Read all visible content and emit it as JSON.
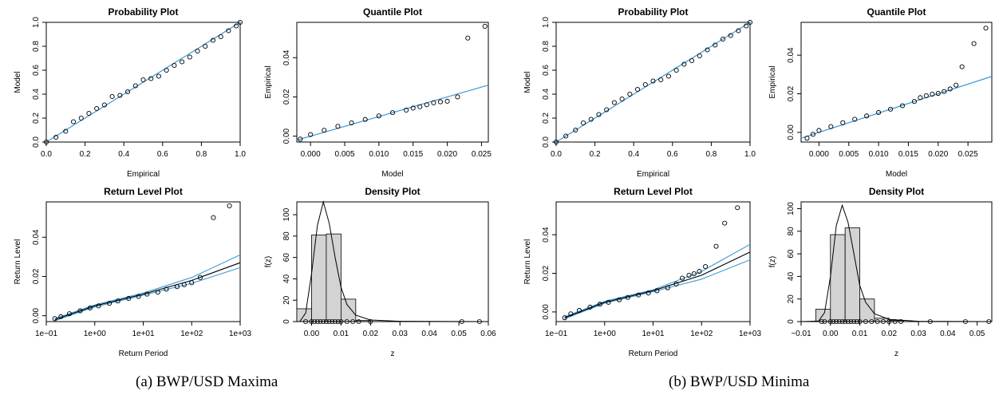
{
  "captions": {
    "a": "(a) BWP/USD Maxima",
    "b": "(b) BWP/USD Minima"
  },
  "colors": {
    "fit_line": "#3a9ad9",
    "points": "#000000",
    "hist_fill": "#d3d3d3"
  },
  "chart_data": [
    {
      "type": "scatter",
      "panel": "a",
      "title": "Probability Plot",
      "xlabel": "Empirical",
      "ylabel": "Model",
      "xlim": [
        0,
        1
      ],
      "ylim": [
        0,
        1
      ],
      "xticks": [
        "0.0",
        "0.2",
        "0.4",
        "0.6",
        "0.8",
        "1.0"
      ],
      "yticks": [
        "0.0",
        "0.2",
        "0.4",
        "0.6",
        "0.8",
        "1.0"
      ],
      "reference_line": {
        "x": [
          0,
          1
        ],
        "y": [
          0,
          1
        ]
      },
      "points": {
        "x": [
          0.0,
          0.05,
          0.1,
          0.14,
          0.18,
          0.22,
          0.26,
          0.3,
          0.34,
          0.38,
          0.42,
          0.46,
          0.5,
          0.54,
          0.58,
          0.62,
          0.66,
          0.7,
          0.74,
          0.78,
          0.82,
          0.86,
          0.9,
          0.94,
          0.98,
          1.0
        ],
        "y": [
          0.0,
          0.04,
          0.09,
          0.17,
          0.2,
          0.24,
          0.28,
          0.31,
          0.38,
          0.39,
          0.42,
          0.47,
          0.52,
          0.53,
          0.55,
          0.6,
          0.64,
          0.67,
          0.71,
          0.76,
          0.8,
          0.85,
          0.88,
          0.93,
          0.97,
          1.0
        ]
      }
    },
    {
      "type": "scatter",
      "panel": "a",
      "title": "Quantile Plot",
      "xlabel": "Model",
      "ylabel": "Empirical",
      "xlim": [
        -0.002,
        0.026
      ],
      "ylim": [
        -0.003,
        0.058
      ],
      "xticks": [
        "0.000",
        "0.005",
        "0.010",
        "0.015",
        "0.020",
        "0.025"
      ],
      "yticks": [
        "0.00",
        "0.02",
        "0.04"
      ],
      "reference_line": {
        "x": [
          -0.002,
          0.026
        ],
        "y": [
          -0.002,
          0.026
        ]
      },
      "points": {
        "x": [
          -0.0015,
          0.0,
          0.002,
          0.004,
          0.006,
          0.008,
          0.01,
          0.012,
          0.014,
          0.015,
          0.016,
          0.017,
          0.018,
          0.019,
          0.02,
          0.0215,
          0.023,
          0.0255
        ],
        "y": [
          -0.0015,
          0.0008,
          0.003,
          0.005,
          0.0068,
          0.0085,
          0.0103,
          0.012,
          0.0133,
          0.0143,
          0.015,
          0.016,
          0.017,
          0.0175,
          0.0178,
          0.02,
          0.05,
          0.056
        ]
      }
    },
    {
      "type": "scatter",
      "panel": "a",
      "title": "Return Level Plot",
      "xlabel": "Return Period",
      "ylabel": "Return Level",
      "xscale": "log",
      "xlim": [
        0.1,
        1000
      ],
      "ylim": [
        -0.003,
        0.058
      ],
      "xticks": [
        "1e−01",
        "1e+00",
        "1e+01",
        "1e+02",
        "1e+03"
      ],
      "yticks": [
        "0.00",
        "0.02",
        "0.04"
      ],
      "fit_line": {
        "x": [
          0.15,
          1,
          10,
          100,
          1000
        ],
        "y": [
          -0.002,
          0.005,
          0.011,
          0.018,
          0.027
        ]
      },
      "ci_upper": {
        "x": [
          0.15,
          1,
          10,
          100,
          1000
        ],
        "y": [
          -0.0015,
          0.0055,
          0.0115,
          0.0195,
          0.031
        ]
      },
      "ci_lower": {
        "x": [
          0.15,
          1,
          10,
          100,
          1000
        ],
        "y": [
          -0.0025,
          0.0045,
          0.0105,
          0.0165,
          0.0245
        ]
      },
      "points": {
        "x": [
          0.15,
          0.2,
          0.3,
          0.5,
          0.8,
          1.2,
          2,
          3,
          5,
          8,
          12,
          20,
          30,
          50,
          70,
          100,
          150,
          280,
          600
        ],
        "y": [
          -0.0015,
          -0.0005,
          0.001,
          0.0025,
          0.004,
          0.005,
          0.0063,
          0.0075,
          0.0088,
          0.0098,
          0.011,
          0.012,
          0.0135,
          0.0148,
          0.0158,
          0.0168,
          0.0195,
          0.05,
          0.056
        ]
      }
    },
    {
      "type": "bar",
      "panel": "a",
      "title": "Density Plot",
      "xlabel": "z",
      "ylabel": "f(z)",
      "xlim": [
        -0.005,
        0.06
      ],
      "ylim": [
        0,
        112
      ],
      "xticks": [
        "0.00",
        "0.01",
        "0.02",
        "0.03",
        "0.04",
        "0.05",
        "0.06"
      ],
      "yticks": [
        "0",
        "20",
        "40",
        "60",
        "80",
        "100"
      ],
      "bins": [
        [
          -0.005,
          0.0
        ],
        [
          0.0,
          0.005
        ],
        [
          0.005,
          0.01
        ],
        [
          0.01,
          0.015
        ],
        [
          0.015,
          0.02
        ]
      ],
      "values": [
        12,
        81,
        82,
        21,
        1
      ],
      "density_curve": {
        "x": [
          -0.004,
          -0.002,
          0.0,
          0.002,
          0.004,
          0.006,
          0.008,
          0.01,
          0.012,
          0.015,
          0.02,
          0.03,
          0.06
        ],
        "y": [
          0,
          8,
          45,
          90,
          112,
          92,
          60,
          32,
          16,
          6,
          1.5,
          0.3,
          0
        ]
      },
      "rug": [
        -0.002,
        0.0,
        0.001,
        0.002,
        0.003,
        0.004,
        0.005,
        0.006,
        0.007,
        0.008,
        0.009,
        0.01,
        0.012,
        0.014,
        0.016,
        0.02,
        0.051,
        0.057
      ]
    },
    {
      "type": "scatter",
      "panel": "b",
      "title": "Probability Plot",
      "xlabel": "Empirical",
      "ylabel": "Model",
      "xlim": [
        0,
        1
      ],
      "ylim": [
        0,
        1
      ],
      "xticks": [
        "0.0",
        "0.2",
        "0.4",
        "0.6",
        "0.8",
        "1.0"
      ],
      "yticks": [
        "0.0",
        "0.2",
        "0.4",
        "0.6",
        "0.8",
        "1.0"
      ],
      "reference_line": {
        "x": [
          0,
          1
        ],
        "y": [
          0,
          1
        ]
      },
      "points": {
        "x": [
          0.0,
          0.05,
          0.1,
          0.14,
          0.18,
          0.22,
          0.26,
          0.3,
          0.34,
          0.38,
          0.42,
          0.46,
          0.5,
          0.54,
          0.58,
          0.62,
          0.66,
          0.7,
          0.74,
          0.78,
          0.82,
          0.86,
          0.9,
          0.94,
          0.98,
          1.0
        ],
        "y": [
          0.0,
          0.05,
          0.1,
          0.16,
          0.19,
          0.23,
          0.27,
          0.33,
          0.36,
          0.4,
          0.44,
          0.48,
          0.51,
          0.52,
          0.55,
          0.6,
          0.65,
          0.68,
          0.72,
          0.77,
          0.81,
          0.86,
          0.89,
          0.93,
          0.97,
          1.0
        ]
      }
    },
    {
      "type": "scatter",
      "panel": "b",
      "title": "Quantile Plot",
      "xlabel": "Model",
      "ylabel": "Empirical",
      "xlim": [
        -0.003,
        0.029
      ],
      "ylim": [
        -0.005,
        0.057
      ],
      "xticks": [
        "0.000",
        "0.005",
        "0.010",
        "0.015",
        "0.020",
        "0.025"
      ],
      "yticks": [
        "0.00",
        "0.02",
        "0.04"
      ],
      "reference_line": {
        "x": [
          -0.003,
          0.029
        ],
        "y": [
          -0.003,
          0.029
        ]
      },
      "points": {
        "x": [
          -0.002,
          -0.001,
          0.0,
          0.002,
          0.004,
          0.006,
          0.008,
          0.01,
          0.012,
          0.014,
          0.016,
          0.017,
          0.018,
          0.019,
          0.02,
          0.021,
          0.022,
          0.023,
          0.024,
          0.026,
          0.028
        ],
        "y": [
          -0.003,
          -0.001,
          0.001,
          0.003,
          0.005,
          0.0068,
          0.0085,
          0.0103,
          0.012,
          0.0138,
          0.016,
          0.018,
          0.019,
          0.0198,
          0.0202,
          0.0212,
          0.0225,
          0.0245,
          0.034,
          0.046,
          0.054
        ]
      }
    },
    {
      "type": "scatter",
      "panel": "b",
      "title": "Return Level Plot",
      "xlabel": "Return Period",
      "ylabel": "Return Level",
      "xscale": "log",
      "xlim": [
        0.1,
        1000
      ],
      "ylim": [
        -0.005,
        0.057
      ],
      "xticks": [
        "1e−01",
        "1e+00",
        "1e+01",
        "1e+02",
        "1e+03"
      ],
      "yticks": [
        "0.00",
        "0.02",
        "0.04"
      ],
      "fit_line": {
        "x": [
          0.15,
          1,
          10,
          100,
          1000
        ],
        "y": [
          -0.003,
          0.005,
          0.011,
          0.019,
          0.031
        ]
      },
      "ci_upper": {
        "x": [
          0.15,
          1,
          10,
          100,
          1000
        ],
        "y": [
          -0.0025,
          0.0055,
          0.0115,
          0.021,
          0.035
        ]
      },
      "ci_lower": {
        "x": [
          0.15,
          1,
          10,
          100,
          1000
        ],
        "y": [
          -0.0035,
          0.0045,
          0.0105,
          0.017,
          0.027
        ]
      },
      "points": {
        "x": [
          0.15,
          0.2,
          0.3,
          0.5,
          0.8,
          1.2,
          2,
          3,
          5,
          8,
          12,
          20,
          30,
          40,
          55,
          70,
          90,
          120,
          200,
          300,
          550
        ],
        "y": [
          -0.003,
          -0.001,
          0.0008,
          0.0025,
          0.004,
          0.005,
          0.0063,
          0.0075,
          0.0088,
          0.0098,
          0.011,
          0.0125,
          0.0145,
          0.0175,
          0.019,
          0.0198,
          0.021,
          0.0235,
          0.034,
          0.046,
          0.054
        ]
      }
    },
    {
      "type": "bar",
      "panel": "b",
      "title": "Density Plot",
      "xlabel": "z",
      "ylabel": "f(z)",
      "xlim": [
        -0.01,
        0.055
      ],
      "ylim": [
        0,
        106
      ],
      "xticks": [
        "−0.01",
        "0.00",
        "0.01",
        "0.02",
        "0.03",
        "0.04",
        "0.05"
      ],
      "yticks": [
        "0",
        "20",
        "40",
        "60",
        "80",
        "100"
      ],
      "bins": [
        [
          -0.005,
          0.0
        ],
        [
          0.0,
          0.005
        ],
        [
          0.005,
          0.01
        ],
        [
          0.01,
          0.015
        ],
        [
          0.015,
          0.02
        ],
        [
          0.02,
          0.025
        ]
      ],
      "values": [
        11,
        77,
        83,
        20,
        3,
        1
      ],
      "density_curve": {
        "x": [
          -0.01,
          -0.004,
          -0.002,
          0.0,
          0.002,
          0.004,
          0.006,
          0.008,
          0.01,
          0.012,
          0.015,
          0.02,
          0.03,
          0.055
        ],
        "y": [
          0,
          0.5,
          8,
          40,
          85,
          103,
          88,
          60,
          32,
          17,
          7,
          2,
          0.3,
          0
        ]
      },
      "rug": [
        -0.003,
        -0.002,
        0.0,
        0.001,
        0.002,
        0.003,
        0.004,
        0.005,
        0.006,
        0.007,
        0.008,
        0.009,
        0.01,
        0.012,
        0.014,
        0.016,
        0.018,
        0.02,
        0.022,
        0.024,
        0.034,
        0.046,
        0.054
      ]
    }
  ]
}
